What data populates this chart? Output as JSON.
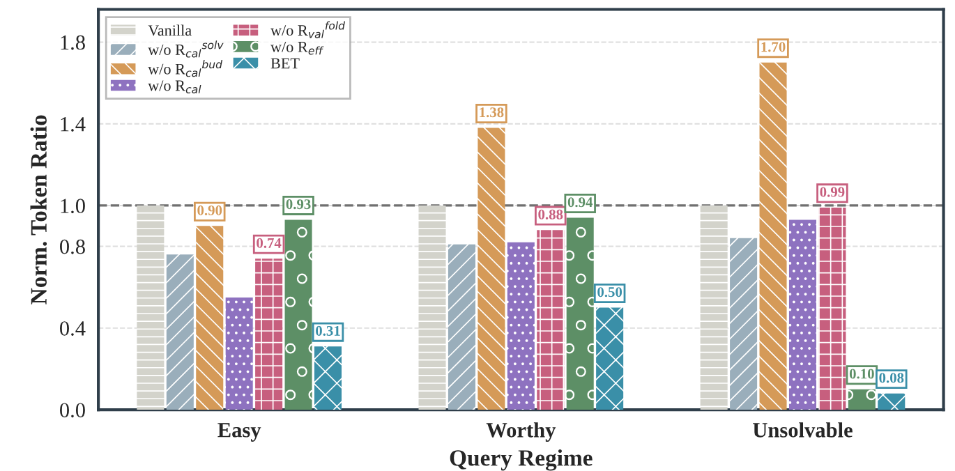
{
  "chart_data": {
    "type": "bar",
    "xlabel": "Query Regime",
    "ylabel": "Norm. Token Ratio",
    "categories": [
      "Easy",
      "Worthy",
      "Unsolvable"
    ],
    "series": [
      {
        "name": "Vanilla",
        "color": "#d3d3cb",
        "values": [
          1.0,
          1.0,
          1.0
        ]
      },
      {
        "name": "w/o R$_{cal}$$^{solv}$",
        "color": "#9aaebb",
        "values": [
          0.76,
          0.81,
          0.84
        ]
      },
      {
        "name": "w/o R$_{cal}$$^{bud}$",
        "color": "#d59a58",
        "values": [
          0.9,
          1.38,
          1.7
        ],
        "value_labels": [
          "0.90",
          "1.38",
          "1.70"
        ]
      },
      {
        "name": "w/o R$_{cal}$",
        "color": "#8e72c0",
        "values": [
          0.55,
          0.82,
          0.93
        ]
      },
      {
        "name": "w/o R$_{val}$$^{fold}$",
        "color": "#c75f7e",
        "values": [
          0.74,
          0.88,
          0.99
        ],
        "value_labels": [
          "0.74",
          "0.88",
          "0.99"
        ]
      },
      {
        "name": "w/o R$_{eff}$",
        "color": "#5d8f66",
        "values": [
          0.93,
          0.94,
          0.1
        ],
        "value_labels": [
          "0.93",
          "0.94",
          "0.10"
        ]
      },
      {
        "name": "BET",
        "color": "#3a8fa8",
        "values": [
          0.31,
          0.5,
          0.08
        ],
        "value_labels": [
          "0.31",
          "0.50",
          "0.08"
        ]
      }
    ],
    "ylim": [
      0,
      1.96
    ],
    "yticks": [
      {
        "value": 0,
        "label": "0.0"
      },
      0.4,
      0.8,
      {
        "value": 1,
        "label": "1.0"
      },
      1.4,
      1.8
    ],
    "ref_lines": [
      {
        "axis": "y",
        "value": 1.0,
        "color": "#707070",
        "line_style": "dashed"
      }
    ],
    "grid": "y",
    "legend": "top left"
  }
}
